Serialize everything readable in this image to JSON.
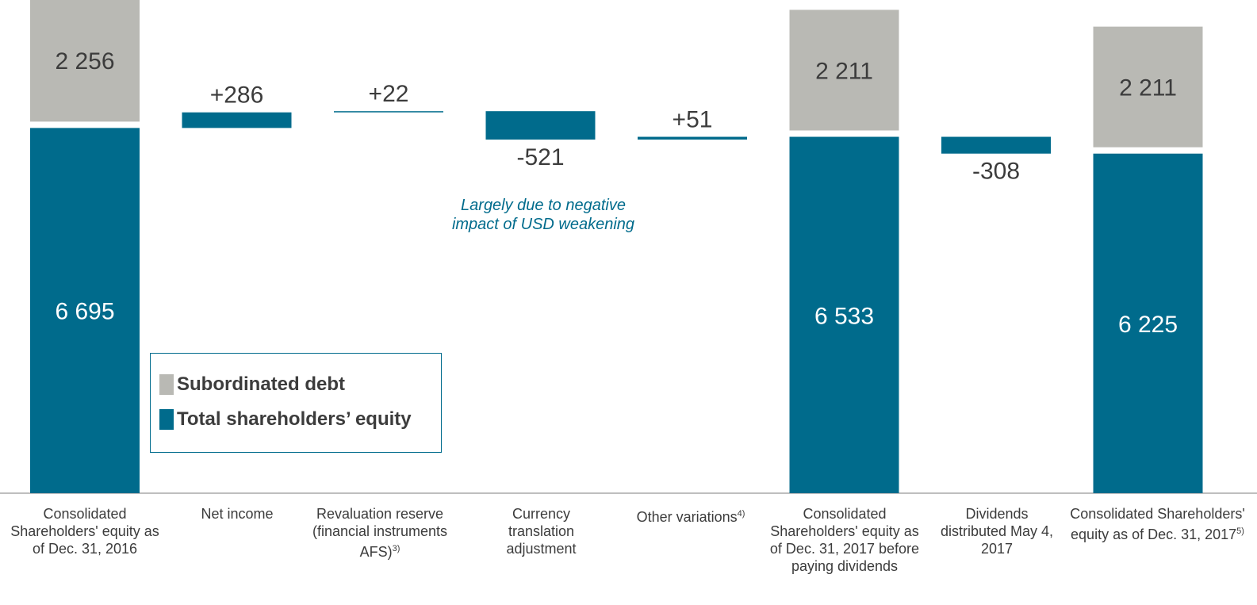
{
  "colors": {
    "equity": "#006b8c",
    "subordinated": "#b9b9b4",
    "axis": "#a8a8a8",
    "text": "#3c3c3c"
  },
  "legend": {
    "subordinated": "Subordinated debt",
    "equity": "Total shareholders’ equity"
  },
  "annotation": "Largely due to negative impact of USD weakening",
  "categories": [
    {
      "label": "Consolidated Shareholders' equity as of Dec. 31, 2016",
      "footnote": ""
    },
    {
      "label": "Net income",
      "footnote": ""
    },
    {
      "label": "Revaluation reserve (financial instruments AFS)",
      "footnote": "3)"
    },
    {
      "label": "Currency translation adjustment",
      "footnote": ""
    },
    {
      "label": "Other variations",
      "footnote": "4)"
    },
    {
      "label": "Consolidated Shareholders' equity as of Dec. 31, 2017 before paying dividends",
      "footnote": ""
    },
    {
      "label": "Dividends distributed May 4, 2017",
      "footnote": ""
    },
    {
      "label": "Consolidated Shareholders' equity as of Dec. 31, 2017",
      "footnote": "5)"
    }
  ],
  "chart_data": {
    "type": "bar",
    "subtype": "waterfall",
    "categories": [
      "Consolidated Shareholders' equity as of Dec. 31, 2016",
      "Net income",
      "Revaluation reserve (financial instruments AFS)",
      "Currency translation adjustment",
      "Other variations",
      "Consolidated Shareholders' equity as of Dec. 31, 2017 before paying dividends",
      "Dividends distributed May 4, 2017",
      "Consolidated Shareholders' equity as of Dec. 31, 2017"
    ],
    "bars": [
      {
        "kind": "total",
        "equity": 6695,
        "subordinated": 2256,
        "equity_label": "6 695",
        "subordinated_label": "2 256"
      },
      {
        "kind": "delta",
        "value": 286,
        "label": "+286"
      },
      {
        "kind": "delta",
        "value": 22,
        "label": "+22"
      },
      {
        "kind": "delta",
        "value": -521,
        "label": "-521"
      },
      {
        "kind": "delta",
        "value": 51,
        "label": "+51"
      },
      {
        "kind": "total",
        "equity": 6533,
        "subordinated": 2211,
        "equity_label": "6 533",
        "subordinated_label": "2 211"
      },
      {
        "kind": "delta",
        "value": -308,
        "label": "-308"
      },
      {
        "kind": "total",
        "equity": 6225,
        "subordinated": 2211,
        "equity_label": "6 225",
        "subordinated_label": "2 211"
      }
    ],
    "series": [
      {
        "name": "Subordinated debt"
      },
      {
        "name": "Total shareholders’ equity"
      }
    ],
    "legend_position": "lower-left-inside",
    "grid": false
  }
}
